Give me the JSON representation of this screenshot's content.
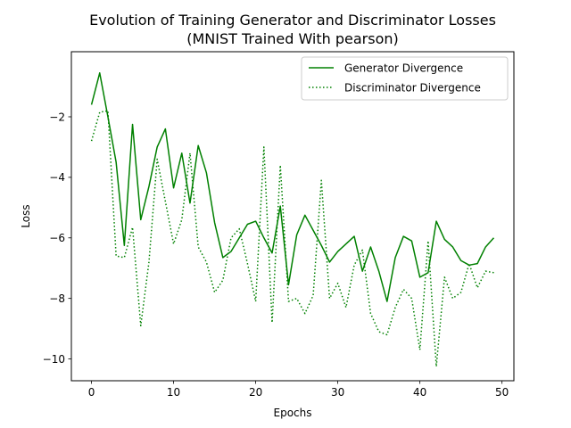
{
  "chart_data": {
    "type": "line",
    "title_line1": "Evolution of Training Generator and Discriminator Losses",
    "title_line2": "(MNIST Trained With pearson)",
    "xlabel": "Epochs",
    "ylabel": "Loss",
    "xlim": [
      -2.45,
      51.45
    ],
    "ylim": [
      -10.72,
      0.15
    ],
    "xticks": [
      0,
      10,
      20,
      30,
      40,
      50
    ],
    "yticks": [
      -2,
      -4,
      -6,
      -8,
      -10
    ],
    "grid": false,
    "legend_position": "top-right",
    "x": [
      0,
      1,
      2,
      3,
      4,
      5,
      6,
      7,
      8,
      9,
      10,
      11,
      12,
      13,
      14,
      15,
      16,
      17,
      18,
      19,
      20,
      21,
      22,
      23,
      24,
      25,
      26,
      27,
      28,
      29,
      30,
      31,
      32,
      33,
      34,
      35,
      36,
      37,
      38,
      39,
      40,
      41,
      42,
      43,
      44,
      45,
      46,
      47,
      48,
      49
    ],
    "series": [
      {
        "name": "Generator Divergence",
        "style": "solid",
        "color": "#008000",
        "values": [
          -1.6,
          -0.55,
          -2.0,
          -3.5,
          -6.25,
          -2.25,
          -5.4,
          -4.3,
          -3.0,
          -2.4,
          -4.35,
          -3.2,
          -4.85,
          -2.95,
          -3.85,
          -5.5,
          -6.65,
          -6.45,
          -6.0,
          -5.55,
          -5.45,
          -6.0,
          -6.5,
          -4.95,
          -7.55,
          -5.9,
          -5.25,
          -5.75,
          -6.25,
          -6.8,
          -6.45,
          -6.2,
          -5.95,
          -7.1,
          -6.3,
          -7.1,
          -8.1,
          -6.65,
          -5.95,
          -6.1,
          -7.3,
          -7.15,
          -5.45,
          -6.05,
          -6.3,
          -6.75,
          -6.9,
          -6.85,
          -6.3,
          -6.0
        ]
      },
      {
        "name": "Discriminator Divergence",
        "style": "dotted",
        "color": "#008000",
        "values": [
          -2.8,
          -1.85,
          -1.8,
          -6.6,
          -6.65,
          -5.65,
          -8.9,
          -6.8,
          -3.4,
          -4.8,
          -6.2,
          -5.4,
          -3.2,
          -6.3,
          -6.8,
          -7.8,
          -7.4,
          -6.0,
          -5.7,
          -6.85,
          -8.1,
          -3.0,
          -8.8,
          -3.6,
          -8.1,
          -8.0,
          -8.5,
          -7.9,
          -4.1,
          -8.0,
          -7.5,
          -8.3,
          -6.9,
          -6.4,
          -8.5,
          -9.1,
          -9.2,
          -8.3,
          -7.7,
          -8.0,
          -9.7,
          -6.1,
          -10.25,
          -7.3,
          -8.0,
          -7.8,
          -6.85,
          -7.65,
          -7.1,
          -7.15
        ]
      }
    ]
  }
}
